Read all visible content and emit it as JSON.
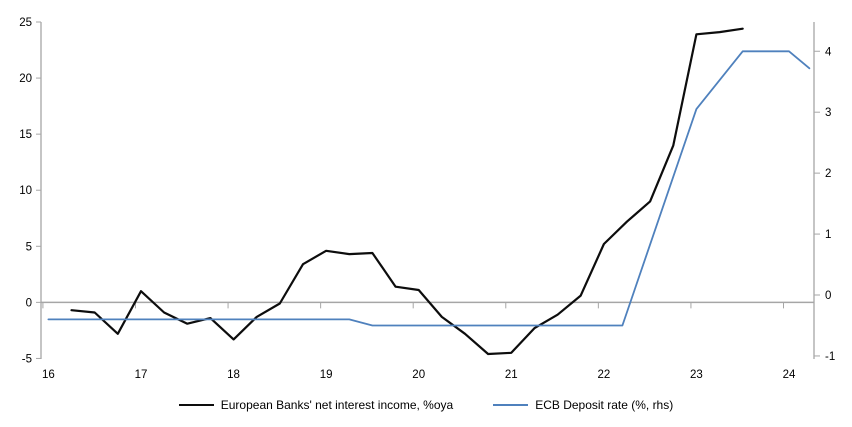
{
  "chart_data": {
    "type": "line",
    "title": "",
    "x_axis": {
      "label": "",
      "ticks": [
        16,
        17,
        18,
        19,
        20,
        21,
        22,
        23,
        24
      ],
      "range": [
        15.92,
        24.27
      ],
      "tick_position": "on-zero-line",
      "label_position": "low"
    },
    "left_axis": {
      "label": "",
      "ticks": [
        -5,
        0,
        5,
        10,
        15,
        20,
        25
      ],
      "range": [
        -5.05,
        25
      ]
    },
    "right_axis": {
      "label": "",
      "ticks": [
        -1,
        0,
        1,
        2,
        3,
        4
      ],
      "range": [
        -1.05,
        4.48
      ]
    },
    "gridlines": "zero-line-only",
    "legend_position": "bottom",
    "axis_color": "#a6a6a6",
    "text_color": "#000000",
    "background_color": "#ffffff",
    "series": [
      {
        "name": "European Banks' net interest income, %oya",
        "axis": "left",
        "color": "#0d0d0d",
        "stroke_width": 2.2,
        "points": [
          [
            16.25,
            -0.7
          ],
          [
            16.5,
            -0.9
          ],
          [
            16.75,
            -2.8
          ],
          [
            17.0,
            1.0
          ],
          [
            17.25,
            -0.9
          ],
          [
            17.5,
            -1.9
          ],
          [
            17.75,
            -1.4
          ],
          [
            18.0,
            -3.3
          ],
          [
            18.25,
            -1.3
          ],
          [
            18.5,
            -0.1
          ],
          [
            18.75,
            3.4
          ],
          [
            19.0,
            4.6
          ],
          [
            19.25,
            4.3
          ],
          [
            19.5,
            4.4
          ],
          [
            19.75,
            1.4
          ],
          [
            20.0,
            1.1
          ],
          [
            20.25,
            -1.3
          ],
          [
            20.5,
            -2.8
          ],
          [
            20.75,
            -4.6
          ],
          [
            21.0,
            -4.5
          ],
          [
            21.25,
            -2.3
          ],
          [
            21.5,
            -1.1
          ],
          [
            21.75,
            0.6
          ],
          [
            22.0,
            5.2
          ],
          [
            22.25,
            7.2
          ],
          [
            22.5,
            9.0
          ],
          [
            22.75,
            14.0
          ],
          [
            23.0,
            23.9
          ],
          [
            23.25,
            24.1
          ],
          [
            23.5,
            24.4
          ]
        ]
      },
      {
        "name": "ECB Deposit rate (%, rhs)",
        "axis": "right",
        "color": "#4f81bd",
        "stroke_width": 1.8,
        "points": [
          [
            16.0,
            -0.4
          ],
          [
            19.25,
            -0.4
          ],
          [
            19.5,
            -0.5
          ],
          [
            22.2,
            -0.5
          ],
          [
            23.0,
            3.05
          ],
          [
            23.5,
            4.0
          ],
          [
            24.0,
            4.0
          ],
          [
            24.22,
            3.72
          ]
        ]
      }
    ]
  }
}
